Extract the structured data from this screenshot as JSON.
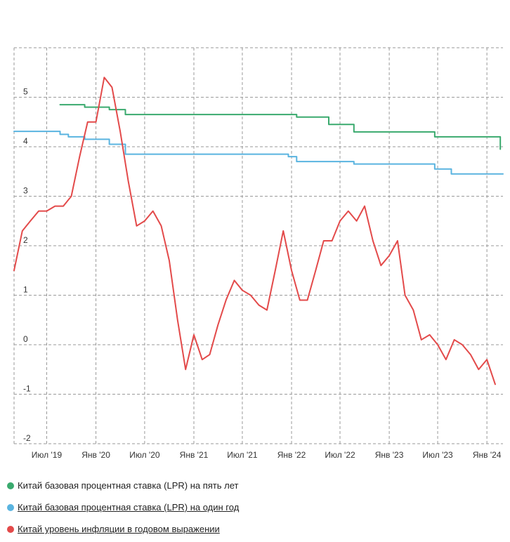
{
  "chart_data": {
    "type": "line",
    "title": "",
    "xlabel": "",
    "ylabel": "",
    "ylim": [
      -2,
      6
    ],
    "yticks": [
      -2,
      -1,
      0,
      1,
      2,
      3,
      4,
      5
    ],
    "ytick_labels": [
      "-2",
      "-1",
      "0",
      "1",
      "2",
      "3",
      "4",
      "5"
    ],
    "xlim": [
      "2019-03-01",
      "2024-03-01"
    ],
    "xticks": [
      "2019-07-01",
      "2020-01-01",
      "2020-07-01",
      "2021-01-01",
      "2021-07-01",
      "2022-01-01",
      "2022-07-01",
      "2023-01-01",
      "2023-07-01",
      "2024-01-01"
    ],
    "xtick_labels": [
      "Июл '19",
      "Янв '20",
      "Июл '20",
      "Янв '21",
      "Июл '21",
      "Янв '22",
      "Июл '22",
      "Янв '23",
      "Июл '23",
      "Янв '24"
    ],
    "grid": true,
    "legend_position": "bottom",
    "series": [
      {
        "name": "Китай базовая процентная ставка (LPR) на пять лет",
        "color": "#3aaa6e",
        "step": true,
        "points": [
          [
            "2019-08-20",
            4.85
          ],
          [
            "2019-11-20",
            4.8
          ],
          [
            "2020-02-20",
            4.75
          ],
          [
            "2020-04-20",
            4.65
          ],
          [
            "2022-01-20",
            4.6
          ],
          [
            "2022-05-20",
            4.45
          ],
          [
            "2022-08-22",
            4.3
          ],
          [
            "2023-06-20",
            4.2
          ],
          [
            "2024-02-20",
            3.95
          ]
        ]
      },
      {
        "name": "Китай базовая процентная ставка (LPR) на один год",
        "color": "#5ab4e0",
        "step": true,
        "points": [
          [
            "2019-03-01",
            4.31
          ],
          [
            "2019-08-20",
            4.25
          ],
          [
            "2019-09-20",
            4.2
          ],
          [
            "2019-11-20",
            4.15
          ],
          [
            "2020-02-20",
            4.05
          ],
          [
            "2020-04-20",
            3.85
          ],
          [
            "2021-12-20",
            3.8
          ],
          [
            "2022-01-20",
            3.7
          ],
          [
            "2022-08-22",
            3.65
          ],
          [
            "2023-06-20",
            3.55
          ],
          [
            "2023-08-21",
            3.45
          ],
          [
            "2024-03-01",
            3.45
          ]
        ]
      },
      {
        "name": "Китай уровень инфляции в годовом выражении",
        "color": "#e34a4a",
        "step": false,
        "points": [
          [
            "2019-03-01",
            1.5
          ],
          [
            "2019-04-01",
            2.3
          ],
          [
            "2019-05-01",
            2.5
          ],
          [
            "2019-06-01",
            2.7
          ],
          [
            "2019-07-01",
            2.7
          ],
          [
            "2019-08-01",
            2.8
          ],
          [
            "2019-09-01",
            2.8
          ],
          [
            "2019-10-01",
            3.0
          ],
          [
            "2019-11-01",
            3.8
          ],
          [
            "2019-12-01",
            4.5
          ],
          [
            "2020-01-01",
            4.5
          ],
          [
            "2020-02-01",
            5.4
          ],
          [
            "2020-03-01",
            5.2
          ],
          [
            "2020-04-01",
            4.3
          ],
          [
            "2020-05-01",
            3.3
          ],
          [
            "2020-06-01",
            2.4
          ],
          [
            "2020-07-01",
            2.5
          ],
          [
            "2020-08-01",
            2.7
          ],
          [
            "2020-09-01",
            2.4
          ],
          [
            "2020-10-01",
            1.7
          ],
          [
            "2020-11-01",
            0.5
          ],
          [
            "2020-12-01",
            -0.5
          ],
          [
            "2021-01-01",
            0.2
          ],
          [
            "2021-02-01",
            -0.3
          ],
          [
            "2021-03-01",
            -0.2
          ],
          [
            "2021-04-01",
            0.4
          ],
          [
            "2021-05-01",
            0.9
          ],
          [
            "2021-06-01",
            1.3
          ],
          [
            "2021-07-01",
            1.1
          ],
          [
            "2021-08-01",
            1.0
          ],
          [
            "2021-09-01",
            0.8
          ],
          [
            "2021-10-01",
            0.7
          ],
          [
            "2021-11-01",
            1.5
          ],
          [
            "2021-12-01",
            2.3
          ],
          [
            "2022-01-01",
            1.5
          ],
          [
            "2022-02-01",
            0.9
          ],
          [
            "2022-03-01",
            0.9
          ],
          [
            "2022-04-01",
            1.5
          ],
          [
            "2022-05-01",
            2.1
          ],
          [
            "2022-06-01",
            2.1
          ],
          [
            "2022-07-01",
            2.5
          ],
          [
            "2022-08-01",
            2.7
          ],
          [
            "2022-09-01",
            2.5
          ],
          [
            "2022-10-01",
            2.8
          ],
          [
            "2022-11-01",
            2.1
          ],
          [
            "2022-12-01",
            1.6
          ],
          [
            "2023-01-01",
            1.8
          ],
          [
            "2023-02-01",
            2.1
          ],
          [
            "2023-03-01",
            1.0
          ],
          [
            "2023-04-01",
            0.7
          ],
          [
            "2023-05-01",
            0.1
          ],
          [
            "2023-06-01",
            0.2
          ],
          [
            "2023-07-01",
            0.0
          ],
          [
            "2023-08-01",
            -0.3
          ],
          [
            "2023-09-01",
            0.1
          ],
          [
            "2023-10-01",
            0.0
          ],
          [
            "2023-11-01",
            -0.2
          ],
          [
            "2023-12-01",
            -0.5
          ],
          [
            "2024-01-01",
            -0.3
          ],
          [
            "2024-02-01",
            -0.8
          ]
        ]
      }
    ]
  },
  "legend": {
    "items": [
      {
        "label": "Китай базовая процентная ставка (LPR) на пять лет",
        "color": "#3aaa6e",
        "underlined": false
      },
      {
        "label": "Китай базовая процентная ставка (LPR) на один год",
        "color": "#5ab4e0",
        "underlined": true
      },
      {
        "label": "Китай уровень инфляции в годовом выражении",
        "color": "#e34a4a",
        "underlined": true
      }
    ]
  }
}
